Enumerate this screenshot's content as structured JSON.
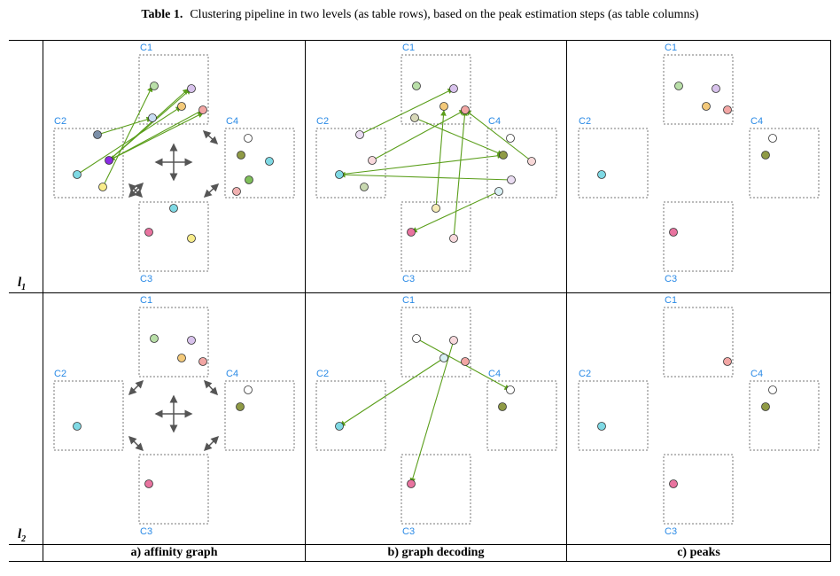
{
  "caption": {
    "label": "Table 1.",
    "text": "Clustering pipeline in two levels (as table rows), based on the peak estimation steps (as table columns)"
  },
  "rows": [
    {
      "level": "l",
      "sub": "1"
    },
    {
      "level": "l",
      "sub": "2"
    }
  ],
  "columns": [
    {
      "label": "a) affinity graph"
    },
    {
      "label": "b) graph decoding"
    },
    {
      "label": "c) peaks"
    }
  ],
  "cluster_labels": [
    "C1",
    "C2",
    "C3",
    "C4"
  ],
  "colors": {
    "arrow": "#5a9e1a",
    "cluster_label": "#2a8ae6",
    "box_border": "#777777"
  }
}
